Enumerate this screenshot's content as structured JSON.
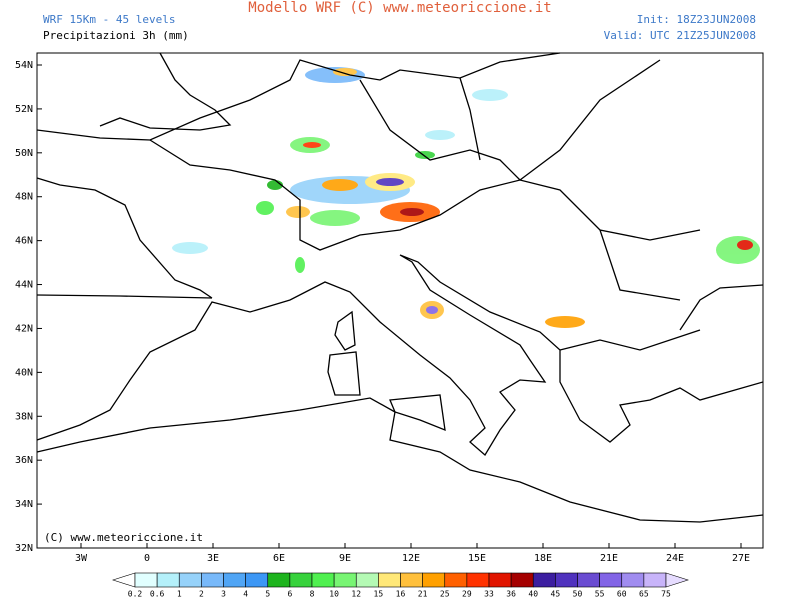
{
  "header": {
    "title": "Modello WRF (C) www.meteoriccione.it",
    "model": "WRF 15Km - 45 levels",
    "field": "Precipitazioni 3h (mm)",
    "init": "Init: 18Z23JUN2008",
    "valid": "Valid: UTC 21Z25JUN2008"
  },
  "map": {
    "lat_labels": [
      "54N",
      "52N",
      "50N",
      "48N",
      "46N",
      "44N",
      "42N",
      "40N",
      "38N",
      "36N",
      "34N",
      "32N"
    ],
    "lon_labels": [
      "3W",
      "0",
      "3E",
      "6E",
      "9E",
      "12E",
      "15E",
      "18E",
      "21E",
      "24E",
      "27E"
    ],
    "credit": "(C) www.meteoriccione.it"
  },
  "legend": {
    "labels": [
      "0.2",
      "0.6",
      "1",
      "2",
      "3",
      "4",
      "5",
      "6",
      "8",
      "10",
      "12",
      "15",
      "16",
      "21",
      "25",
      "29",
      "33",
      "36",
      "40",
      "45",
      "50",
      "55",
      "60",
      "65",
      "75"
    ],
    "colors": [
      "#e1ffff",
      "#b4f0fa",
      "#96d2fa",
      "#78b9fa",
      "#50a5f5",
      "#3c97f5",
      "#1eb41e",
      "#37d23c",
      "#50f050",
      "#78f573",
      "#b4fab4",
      "#ffe878",
      "#ffc03c",
      "#ffa000",
      "#ff6000",
      "#ff3200",
      "#e11400",
      "#a50000",
      "#3c1ea0",
      "#5032be",
      "#6a4cd2",
      "#8264e6",
      "#a08cf0",
      "#c8b4fa"
    ]
  }
}
